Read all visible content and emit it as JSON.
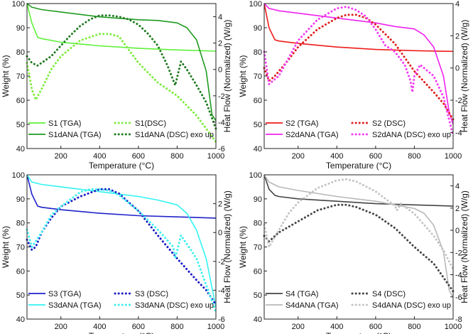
{
  "chart_data": [
    {
      "type": "line",
      "xlabel": "Temperature (°C)",
      "ylabel_left": "Weight (%)",
      "ylabel_right": "Heat Flow (Normalized) (W/g)",
      "xlim": [
        25,
        1000
      ],
      "ylim_left": [
        40,
        100
      ],
      "ylim_right": [
        -6,
        5
      ],
      "xticks": [
        200,
        400,
        600,
        800,
        1000
      ],
      "yticks_left": [
        40,
        50,
        60,
        70,
        80,
        90,
        100
      ],
      "yticks_right": [
        -6,
        -4,
        -2,
        0,
        2,
        4
      ],
      "legend_position": "bottom-left",
      "annotation": "exo up",
      "series": [
        {
          "name": "S1 (TGA)",
          "axis": "left",
          "style": "solid",
          "color": "#5ef03a",
          "x": [
            25,
            50,
            80,
            100,
            200,
            400,
            600,
            800,
            1000
          ],
          "y": [
            100,
            92,
            86,
            85.5,
            84,
            82.5,
            81.5,
            80.8,
            80.3
          ]
        },
        {
          "name": "S1dANA (TGA)",
          "axis": "left",
          "style": "solid",
          "color": "#1f9a1f",
          "x": [
            25,
            50,
            100,
            200,
            400,
            600,
            700,
            800,
            850,
            900,
            950,
            980,
            1000
          ],
          "y": [
            100,
            98.5,
            97.5,
            96.5,
            94.5,
            93.3,
            93,
            92,
            90,
            85,
            72,
            54,
            51.5
          ]
        },
        {
          "name": "S1(DSC)",
          "axis": "right",
          "style": "dotted",
          "color": "#7fec3e",
          "x": [
            25,
            50,
            70,
            100,
            150,
            200,
            300,
            400,
            450,
            500,
            550,
            600,
            700,
            800,
            900,
            1000
          ],
          "y": [
            0.5,
            -1.5,
            -2.3,
            -1.5,
            0,
            1,
            2.2,
            2.7,
            2.7,
            2.5,
            1.5,
            0.5,
            -1,
            -2,
            -3.5,
            -5.5
          ]
        },
        {
          "name": "S1dANA (DSC)",
          "axis": "right",
          "style": "dotted",
          "color": "#1f7a1f",
          "x": [
            25,
            50,
            80,
            150,
            200,
            250,
            300,
            350,
            400,
            450,
            500,
            550,
            600,
            650,
            700,
            750,
            790,
            820,
            850,
            900,
            950,
            1000
          ],
          "y": [
            1,
            0.5,
            0.3,
            1,
            1.8,
            2.6,
            3.3,
            3.8,
            4.1,
            4.1,
            4,
            3.8,
            3.4,
            2.7,
            1.8,
            0.3,
            -1.2,
            0.6,
            0,
            -1.2,
            -2.5,
            -4.5
          ]
        }
      ]
    },
    {
      "type": "line",
      "xlabel": "Temperature (°C)",
      "ylabel_left": "Weight (%)",
      "ylabel_right": "Heat Flow (Normalized) (W/g)",
      "xlim": [
        25,
        1000
      ],
      "ylim_left": [
        40,
        100
      ],
      "ylim_right": [
        -5,
        4
      ],
      "xticks": [
        200,
        400,
        600,
        800,
        1000
      ],
      "yticks_left": [
        40,
        50,
        60,
        70,
        80,
        90,
        100
      ],
      "yticks_right": [
        -4,
        -2,
        0,
        2,
        4
      ],
      "legend_position": "bottom-left",
      "annotation": "exo up",
      "series": [
        {
          "name": "S2 (TGA)",
          "axis": "left",
          "style": "solid",
          "color": "#ee1c1c",
          "x": [
            25,
            50,
            80,
            100,
            200,
            400,
            600,
            800,
            1000
          ],
          "y": [
            100,
            90,
            85,
            84.5,
            83.5,
            82,
            81,
            80.5,
            80.2
          ]
        },
        {
          "name": "S2dANA (TGA)",
          "axis": "left",
          "style": "solid",
          "color": "#ee22ee",
          "x": [
            25,
            50,
            100,
            200,
            400,
            600,
            700,
            800,
            850,
            900,
            950,
            980,
            1000
          ],
          "y": [
            100,
            98,
            97,
            96,
            94,
            92,
            90.5,
            89.5,
            87,
            82,
            70,
            55,
            50
          ]
        },
        {
          "name": "S2 (DSC)",
          "axis": "right",
          "style": "dotted",
          "color": "#e02020",
          "x": [
            25,
            50,
            80,
            150,
            200,
            300,
            400,
            450,
            500,
            550,
            600,
            700,
            800,
            900,
            950,
            1000
          ],
          "y": [
            0,
            -0.8,
            -0.5,
            0.5,
            1.3,
            2.4,
            3.1,
            3.3,
            3.3,
            3.1,
            2.7,
            1.5,
            -0.2,
            -1.5,
            -2.2,
            -3.2
          ]
        },
        {
          "name": "S2dANA (DSC)",
          "axis": "right",
          "style": "dotted",
          "color": "#f23cf2",
          "x": [
            25,
            50,
            100,
            150,
            200,
            300,
            400,
            450,
            500,
            550,
            600,
            650,
            700,
            750,
            780,
            790,
            800,
            830,
            900,
            950,
            1000
          ],
          "y": [
            1,
            -1,
            -0.5,
            0.6,
            1.7,
            3,
            3.7,
            3.8,
            3.6,
            3.2,
            2.4,
            1.4,
            1,
            0.2,
            -0.8,
            -1.5,
            -0.5,
            0.2,
            -0.5,
            -1.8,
            -4.2
          ]
        }
      ]
    },
    {
      "type": "line",
      "xlabel": "Temperature (°C)",
      "ylabel_left": "Weight (%)",
      "ylabel_right": "Heat Flow (Normalized) (W/g)",
      "xlim": [
        25,
        1000
      ],
      "ylim_left": [
        40,
        100
      ],
      "ylim_right": [
        -6,
        4
      ],
      "xticks": [
        200,
        400,
        600,
        800,
        1000
      ],
      "yticks_left": [
        40,
        50,
        60,
        70,
        80,
        90,
        100
      ],
      "yticks_right": [
        -6,
        -4,
        -2,
        0,
        2
      ],
      "legend_position": "bottom-left",
      "annotation": "exo up",
      "series": [
        {
          "name": "S3 (TGA)",
          "axis": "left",
          "style": "solid",
          "color": "#1e22c8",
          "x": [
            25,
            50,
            80,
            100,
            200,
            400,
            600,
            800,
            1000
          ],
          "y": [
            100,
            92,
            87,
            86.5,
            85.5,
            84,
            83,
            82.5,
            82
          ]
        },
        {
          "name": "S3dANA (TGA)",
          "axis": "left",
          "style": "solid",
          "color": "#33f2f2",
          "x": [
            25,
            50,
            100,
            200,
            400,
            600,
            700,
            800,
            850,
            900,
            950,
            980,
            1000
          ],
          "y": [
            100,
            97,
            96,
            95,
            93,
            91,
            89.5,
            87.5,
            84,
            77,
            65,
            53,
            45
          ]
        },
        {
          "name": "S3 (DSC)",
          "axis": "right",
          "style": "dotted",
          "color": "#1c1cc4",
          "x": [
            25,
            50,
            70,
            100,
            150,
            200,
            300,
            400,
            450,
            500,
            600,
            700,
            800,
            900,
            950,
            1000
          ],
          "y": [
            -0.5,
            -1.2,
            -1,
            0,
            1,
            1.8,
            2.5,
            3,
            3,
            2.7,
            1.5,
            -0.2,
            -1.8,
            -3.3,
            -4,
            -5
          ]
        },
        {
          "name": "S3dANA (DSC)",
          "axis": "right",
          "style": "dotted",
          "color": "#3ff0f0",
          "x": [
            25,
            50,
            100,
            150,
            200,
            300,
            350,
            400,
            450,
            500,
            600,
            700,
            780,
            790,
            820,
            900,
            1000
          ],
          "y": [
            0.2,
            -1,
            0,
            1.2,
            1.8,
            2.8,
            3,
            3,
            2.9,
            2.6,
            1.5,
            0.2,
            -1,
            -1.8,
            -0.2,
            -1.8,
            -5.5
          ]
        }
      ]
    },
    {
      "type": "line",
      "xlabel": "Temperature (°C)",
      "ylabel_left": "Weight (%)",
      "ylabel_right": "Heat Flow (Normalized) (W/g)",
      "xlim": [
        25,
        1000
      ],
      "ylim_left": [
        40,
        100
      ],
      "ylim_right": [
        -8,
        5
      ],
      "xticks": [
        200,
        400,
        600,
        800,
        1000
      ],
      "yticks_left": [
        40,
        50,
        60,
        70,
        80,
        90,
        100
      ],
      "yticks_right": [
        -8,
        -6,
        -4,
        -2,
        0,
        2,
        4
      ],
      "legend_position": "bottom-left",
      "annotation": "exo up",
      "series": [
        {
          "name": "S4 (TGA)",
          "axis": "left",
          "style": "solid",
          "color": "#444444",
          "x": [
            25,
            50,
            80,
            100,
            200,
            400,
            600,
            800,
            1000
          ],
          "y": [
            100,
            94,
            91.5,
            91,
            90,
            89,
            88,
            87.5,
            87
          ]
        },
        {
          "name": "S4dANA (TGA)",
          "axis": "left",
          "style": "solid",
          "color": "#b8b8b8",
          "x": [
            25,
            50,
            100,
            200,
            400,
            600,
            700,
            800,
            850,
            900,
            950,
            980,
            1000
          ],
          "y": [
            100,
            97,
            95,
            93.5,
            91,
            89,
            87.5,
            86,
            84,
            79,
            68,
            52,
            49
          ]
        },
        {
          "name": "S4 (DSC)",
          "axis": "right",
          "style": "dotted",
          "color": "#444444",
          "x": [
            25,
            50,
            100,
            200,
            300,
            400,
            450,
            500,
            600,
            700,
            800,
            900,
            1000
          ],
          "y": [
            -0.5,
            -1,
            -0.2,
            0.8,
            1.8,
            2.3,
            2.3,
            2.1,
            1.4,
            0.2,
            -1.5,
            -3,
            -5.5
          ]
        },
        {
          "name": "S4dANA (DSC)",
          "axis": "right",
          "style": "dotted",
          "color": "#c4c4c4",
          "x": [
            25,
            50,
            100,
            150,
            200,
            300,
            400,
            450,
            500,
            600,
            700,
            710,
            730,
            800,
            900,
            950,
            1000
          ],
          "y": [
            0.5,
            -1.5,
            0,
            1.5,
            2.5,
            3.8,
            4.5,
            4.6,
            4.4,
            3.5,
            2.2,
            1.8,
            2.4,
            1.5,
            -0.5,
            -1.8,
            -3.5
          ]
        }
      ]
    }
  ]
}
